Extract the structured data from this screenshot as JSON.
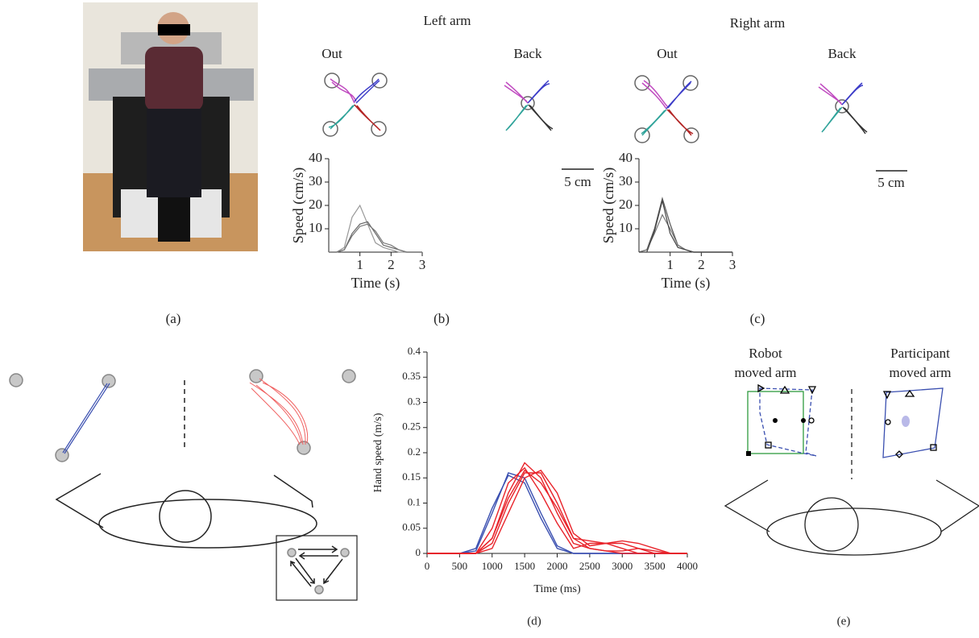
{
  "panel_labels": [
    "(a)",
    "(b)",
    "(c)",
    "(d)",
    "(e)"
  ],
  "panel_b": {
    "title": "Left arm",
    "out": "Out",
    "back": "Back",
    "scale": "5 cm"
  },
  "panel_c": {
    "title": "Right arm",
    "out": "Out",
    "back": "Back",
    "scale": "5 cm"
  },
  "panel_e": {
    "left": [
      "Robot",
      "moved arm"
    ],
    "right": [
      "Participant",
      "moved arm"
    ]
  },
  "chart_data": [
    {
      "type": "line",
      "x_label": "Time (s)",
      "y_label": "Speed (cm/s)",
      "x": [
        0,
        0.25,
        0.5,
        0.75,
        1,
        1.25,
        1.5,
        1.75,
        2,
        2.25,
        2.5,
        2.75,
        3
      ],
      "series": [
        {
          "color": "#999999",
          "values": [
            0,
            0,
            2,
            15,
            20,
            12,
            4,
            2,
            1,
            0,
            0,
            0,
            0
          ]
        },
        {
          "color": "#666666",
          "values": [
            0,
            0,
            1,
            8,
            12,
            13,
            8,
            3,
            2,
            1,
            0,
            0,
            0
          ]
        },
        {
          "color": "#777777",
          "values": [
            0,
            0,
            1,
            7,
            11,
            12,
            9,
            4,
            3,
            1,
            0,
            0,
            0
          ]
        }
      ],
      "xlim": [
        0,
        3
      ],
      "ylim": [
        0,
        40
      ],
      "xticks": [
        1,
        2,
        3
      ],
      "yticks": [
        10,
        20,
        30,
        40
      ]
    },
    {
      "type": "line",
      "x_label": "Time (s)",
      "y_label": "Speed (cm/s)",
      "x": [
        0,
        0.25,
        0.5,
        0.75,
        1,
        1.25,
        1.5,
        1.75,
        2,
        2.25,
        2.5,
        2.75,
        3
      ],
      "series": [
        {
          "color": "#555555",
          "values": [
            0,
            1,
            10,
            23,
            12,
            3,
            1,
            0,
            0,
            0,
            0,
            0,
            0
          ]
        },
        {
          "color": "#777777",
          "values": [
            0,
            1,
            8,
            16,
            10,
            3,
            1,
            0,
            0,
            0,
            0,
            0,
            0
          ]
        },
        {
          "color": "#444444",
          "values": [
            0,
            0,
            9,
            22,
            8,
            2,
            1,
            0,
            0,
            0,
            0,
            0,
            0
          ]
        }
      ],
      "xlim": [
        0,
        3
      ],
      "ylim": [
        0,
        40
      ],
      "xticks": [
        1,
        2,
        3
      ],
      "yticks": [
        10,
        20,
        30,
        40
      ]
    },
    {
      "type": "line",
      "x_label": "Time (ms)",
      "y_label": "Hand speed (m/s)",
      "x": [
        0,
        250,
        500,
        750,
        1000,
        1250,
        1500,
        1750,
        2000,
        2250,
        2500,
        2750,
        3000,
        3250,
        3500,
        3750,
        4000
      ],
      "series": [
        {
          "color": "#3a4fb0",
          "values": [
            0,
            0,
            0,
            0.01,
            0.09,
            0.155,
            0.14,
            0.07,
            0.01,
            0,
            0,
            0,
            0,
            0,
            0,
            0,
            0
          ]
        },
        {
          "color": "#3a4fb0",
          "values": [
            0,
            0,
            0,
            0.005,
            0.08,
            0.16,
            0.15,
            0.08,
            0.015,
            0,
            0,
            0,
            0,
            0,
            0,
            0,
            0
          ]
        },
        {
          "color": "#e8232a",
          "values": [
            0,
            0,
            0,
            0,
            0.03,
            0.12,
            0.18,
            0.15,
            0.08,
            0.02,
            0.01,
            0.005,
            0,
            0,
            0,
            0,
            0
          ]
        },
        {
          "color": "#e8232a",
          "values": [
            0,
            0,
            0,
            0,
            0.02,
            0.1,
            0.16,
            0.16,
            0.1,
            0.03,
            0.025,
            0.02,
            0.01,
            0,
            0,
            0,
            0
          ]
        },
        {
          "color": "#e8232a",
          "values": [
            0,
            0,
            0,
            0,
            0.05,
            0.14,
            0.17,
            0.12,
            0.06,
            0.01,
            0.02,
            0.02,
            0.02,
            0.01,
            0,
            0,
            0
          ]
        },
        {
          "color": "#e8232a",
          "values": [
            0,
            0,
            0,
            0,
            0.01,
            0.08,
            0.15,
            0.165,
            0.12,
            0.04,
            0.015,
            0.02,
            0.025,
            0.02,
            0.01,
            0,
            0
          ]
        },
        {
          "color": "#e8232a",
          "values": [
            0,
            0,
            0,
            0,
            0.03,
            0.11,
            0.165,
            0.14,
            0.09,
            0.03,
            0.01,
            0.005,
            0.005,
            0.01,
            0.005,
            0,
            0
          ]
        }
      ],
      "xlim": [
        0,
        4000
      ],
      "ylim": [
        0,
        0.4
      ],
      "xticks": [
        0,
        500,
        1000,
        1500,
        2000,
        2500,
        3000,
        3500,
        4000
      ],
      "yticks": [
        0,
        0.05,
        0.1,
        0.15,
        0.2,
        0.25,
        0.3,
        0.35,
        0.4
      ]
    }
  ]
}
